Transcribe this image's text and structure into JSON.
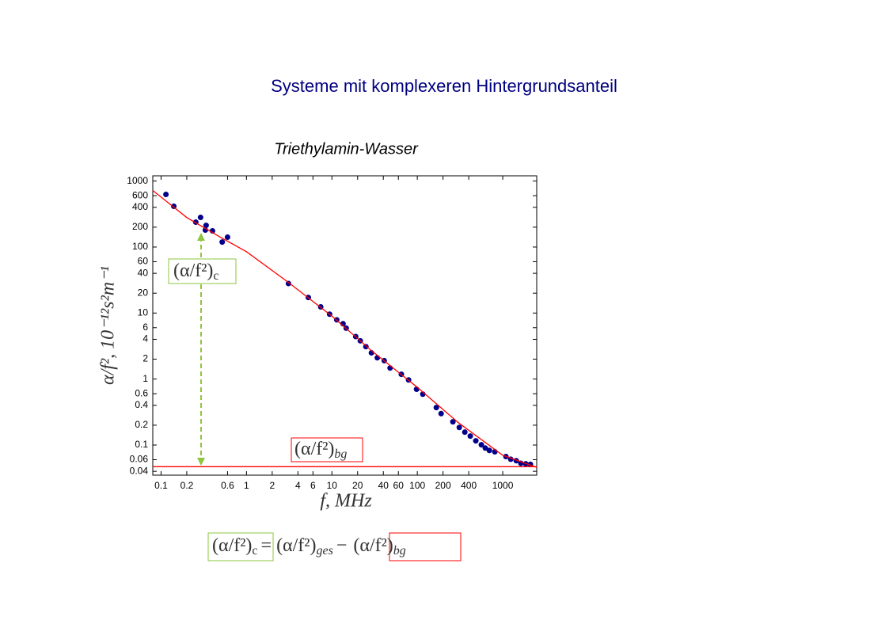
{
  "header": {
    "title": "Systeme mit komplexeren Hintergrundsanteil"
  },
  "chart_data": {
    "type": "scatter",
    "title": "Triethylamin-Wasser",
    "x_label": "f, MHz",
    "y_label": "α/f², 10⁻¹²s²m⁻¹",
    "xscale": "log",
    "yscale": "log",
    "xlim": [
      0.08,
      2500
    ],
    "ylim": [
      0.035,
      1200
    ],
    "xticks": [
      0.1,
      0.2,
      0.6,
      1,
      2,
      4,
      6,
      10,
      20,
      40,
      60,
      100,
      200,
      400,
      1000
    ],
    "yticks": [
      1000,
      600,
      400,
      200,
      100,
      60,
      40,
      20,
      10,
      6,
      4,
      2,
      1,
      0.6,
      0.4,
      0.2,
      0.1,
      0.06,
      0.04
    ],
    "series": [
      {
        "style": "points",
        "color": "#00008b",
        "x": [
          0.114,
          0.141,
          0.255,
          0.29,
          0.33,
          0.337,
          0.4,
          0.52,
          0.6,
          3.1,
          5.3,
          7.4,
          9.4,
          11.4,
          13.5,
          14.7,
          19,
          21.5,
          25,
          29,
          34,
          41,
          48,
          65,
          79,
          98,
          116,
          167,
          190,
          261,
          310,
          360,
          417,
          484,
          562,
          625,
          697,
          808,
          1090,
          1240,
          1440,
          1630,
          1860,
          2110
        ],
        "values": [
          627,
          414,
          238,
          281,
          181,
          213,
          176,
          119,
          141,
          28,
          17.2,
          12.4,
          9.6,
          7.9,
          6.9,
          5.9,
          4.4,
          3.8,
          3.1,
          2.5,
          2.1,
          1.9,
          1.47,
          1.18,
          0.97,
          0.7,
          0.59,
          0.37,
          0.3,
          0.225,
          0.185,
          0.157,
          0.137,
          0.116,
          0.101,
          0.09,
          0.083,
          0.079,
          0.067,
          0.061,
          0.058,
          0.053,
          0.052,
          0.051
        ]
      },
      {
        "style": "line",
        "color": "#ff0000",
        "x": [
          0.08,
          0.2,
          0.5,
          1,
          3,
          10,
          30,
          100,
          300,
          1000,
          2500
        ],
        "values": [
          720,
          280,
          140,
          85,
          30,
          9,
          2.6,
          0.75,
          0.22,
          0.07,
          0.046
        ]
      },
      {
        "style": "line",
        "color": "#ff0000",
        "x": [
          0.08,
          2500
        ],
        "values": [
          0.047,
          0.047
        ]
      }
    ],
    "annotations": [
      {
        "text": "(α/f²)",
        "sub": "c",
        "color": "#8dc63f"
      },
      {
        "text": "(α/f²)",
        "sub": "bg",
        "color": "#ff0000"
      }
    ]
  },
  "equation": {
    "parts": [
      "(α/f²)",
      "c",
      "= (α/f²)",
      "ges",
      "−",
      "(α/f²)",
      "bg"
    ]
  }
}
